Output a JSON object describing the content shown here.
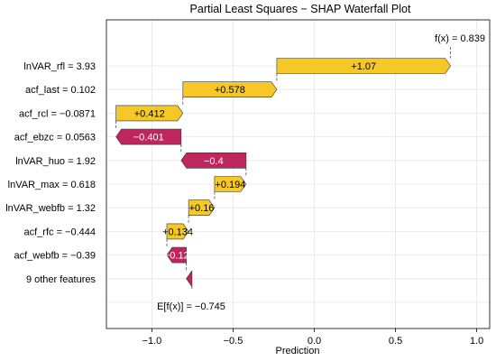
{
  "chart_data": {
    "type": "waterfall",
    "title": "Partial Least Squares − SHAP Waterfall Plot",
    "xlabel": "Prediction",
    "xlim": [
      -1.28,
      1.08
    ],
    "xticks": [
      -1.0,
      -0.5,
      0.0,
      0.5,
      1.0
    ],
    "xtick_labels": [
      "−1.0",
      "−0.5",
      "0.0",
      "0.5",
      "1.0"
    ],
    "grid": true,
    "base_value": -0.745,
    "base_label": "E[f(x)] = −0.745",
    "final_value": 0.839,
    "final_label": "f(x) = 0.839",
    "features": [
      {
        "label": "lnVAR_rfl = 3.93",
        "value": 1.07,
        "text": "+1.07"
      },
      {
        "label": "acf_last = 0.102",
        "value": 0.578,
        "text": "+0.578"
      },
      {
        "label": "acf_rcl = −0.0871",
        "value": 0.412,
        "text": "+0.412"
      },
      {
        "label": "acf_ebzc = 0.0563",
        "value": -0.401,
        "text": "−0.401"
      },
      {
        "label": "lnVAR_huo = 1.92",
        "value": -0.4,
        "text": "−0.4"
      },
      {
        "label": "lnVAR_max = 0.618",
        "value": 0.194,
        "text": "+0.194"
      },
      {
        "label": "lnVAR_webfb = 1.32",
        "value": 0.16,
        "text": "+0.16"
      },
      {
        "label": "acf_rfc = −0.444",
        "value": 0.134,
        "text": "+0.134"
      },
      {
        "label": "acf_webfb = −0.39",
        "value": -0.12,
        "text": "−0.12"
      },
      {
        "label": "9 other features",
        "value": -0.035,
        "text": ""
      }
    ],
    "colors": {
      "positive": "#F5C827",
      "negative": "#C0265E",
      "positive_text": "#000000",
      "negative_text": "#FFFFFF"
    }
  }
}
